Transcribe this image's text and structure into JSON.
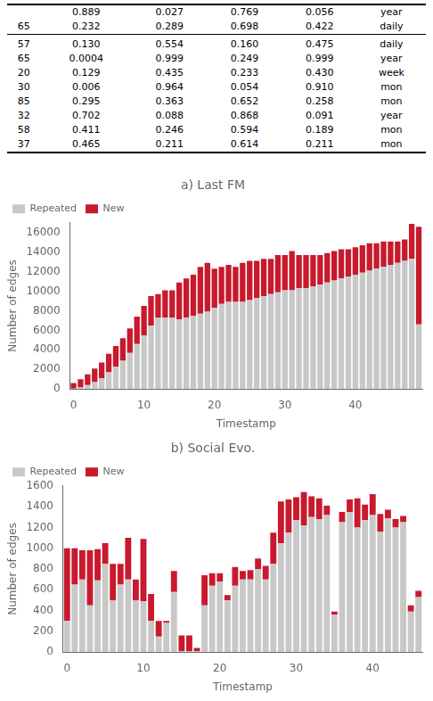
{
  "chart_data": [
    {
      "type": "table",
      "values": [
        [
          null,
          "0.889",
          "0.027",
          null,
          "0.769",
          "0.056",
          "year"
        ],
        [
          "65",
          "0.232",
          "0.289",
          null,
          "0.698",
          "0.422",
          "daily"
        ],
        [
          null,
          null,
          null,
          null,
          null,
          null,
          null
        ],
        [
          "57",
          "0.130",
          "0.554",
          null,
          "0.160",
          "0.475",
          "daily"
        ],
        [
          "65",
          "0.0004",
          "0.999",
          null,
          "0.249",
          "0.999",
          "year"
        ],
        [
          "20",
          "0.129",
          "0.435",
          null,
          "0.233",
          "0.430",
          "week"
        ],
        [
          "30",
          "0.006",
          "0.964",
          null,
          "0.054",
          "0.910",
          "mon"
        ],
        [
          "85",
          "0.295",
          "0.363",
          null,
          "0.652",
          "0.258",
          "mon"
        ],
        [
          "32",
          "0.702",
          "0.088",
          null,
          "0.868",
          "0.091",
          "year"
        ],
        [
          "58",
          "0.411",
          "0.246",
          null,
          "0.594",
          "0.189",
          "mon"
        ],
        [
          "37",
          "0.465",
          "0.211",
          null,
          "0.614",
          "0.211",
          "mon"
        ]
      ]
    },
    {
      "type": "bar",
      "title": "a) Last FM",
      "x_label": "Timestamp",
      "y_label": "Number of edges",
      "stacked": true,
      "grid": false,
      "legend": "upper left",
      "categories": [
        "0",
        null,
        null,
        null,
        null,
        null,
        null,
        null,
        null,
        null,
        "10",
        null,
        null,
        null,
        null,
        null,
        null,
        null,
        null,
        null,
        "20",
        null,
        null,
        null,
        null,
        null,
        null,
        null,
        null,
        null,
        "30",
        null,
        null,
        null,
        null,
        null,
        null,
        null,
        null,
        null,
        "40",
        null,
        null,
        null,
        null,
        null,
        null,
        null,
        null,
        null
      ],
      "series": [
        {
          "name": "Repeated",
          "color": "#c8c8c8",
          "values": [
            50,
            150,
            400,
            700,
            1100,
            1700,
            2300,
            2900,
            3700,
            4600,
            5500,
            6500,
            7300,
            7300,
            7300,
            7100,
            7300,
            7500,
            7700,
            7900,
            8300,
            8700,
            8900,
            8900,
            8900,
            9100,
            9300,
            9500,
            9700,
            9900,
            10100,
            10100,
            10300,
            10300,
            10500,
            10700,
            10900,
            11100,
            11300,
            11500,
            11700,
            11900,
            12100,
            12300,
            12500,
            12700,
            12900,
            13100,
            13300,
            6600
          ]
        },
        {
          "name": "New",
          "color": "#c8192d",
          "values": [
            550,
            850,
            1100,
            1400,
            1600,
            1900,
            2100,
            2300,
            2500,
            2800,
            3000,
            3000,
            2400,
            2800,
            2800,
            3800,
            4000,
            4200,
            4800,
            5000,
            4000,
            3800,
            3800,
            3600,
            4000,
            4000,
            3800,
            3800,
            3600,
            3800,
            3600,
            4000,
            3400,
            3400,
            3200,
            3000,
            3000,
            3000,
            3000,
            2800,
            2800,
            2800,
            2800,
            2600,
            2600,
            2400,
            2200,
            2200,
            3600,
            10000
          ]
        }
      ],
      "ylim": [
        0,
        17000
      ],
      "yticks": [
        0,
        2000,
        4000,
        6000,
        8000,
        10000,
        12000,
        14000,
        16000
      ]
    },
    {
      "type": "bar",
      "title": "b) Social Evo.",
      "x_label": "Timestamp",
      "y_label": "Number of edges",
      "stacked": true,
      "grid": false,
      "legend": "upper left",
      "categories": [
        "0",
        null,
        null,
        null,
        null,
        null,
        null,
        null,
        null,
        null,
        "10",
        null,
        null,
        null,
        null,
        null,
        null,
        null,
        null,
        null,
        "20",
        null,
        null,
        null,
        null,
        null,
        null,
        null,
        null,
        null,
        "30",
        null,
        null,
        null,
        null,
        null,
        null,
        null,
        null,
        null,
        "40",
        null,
        null,
        null,
        null,
        null,
        null
      ],
      "series": [
        {
          "name": "Repeated",
          "color": "#c8c8c8",
          "values": [
            300,
            650,
            700,
            450,
            690,
            850,
            500,
            650,
            700,
            500,
            490,
            300,
            150,
            280,
            580,
            10,
            10,
            10,
            450,
            640,
            680,
            500,
            640,
            700,
            700,
            800,
            700,
            850,
            1050,
            1150,
            1270,
            1220,
            1300,
            1280,
            1320,
            360,
            1250,
            1350,
            1200,
            1270,
            1320,
            1160,
            1290,
            1200,
            1250,
            390,
            530
          ]
        },
        {
          "name": "New",
          "color": "#c8192d",
          "values": [
            700,
            350,
            280,
            530,
            300,
            200,
            350,
            200,
            400,
            200,
            600,
            260,
            150,
            20,
            200,
            150,
            150,
            30,
            290,
            120,
            80,
            50,
            180,
            80,
            90,
            100,
            130,
            300,
            400,
            320,
            220,
            320,
            200,
            200,
            90,
            30,
            100,
            120,
            280,
            150,
            200,
            170,
            80,
            80,
            60,
            60,
            60
          ]
        }
      ],
      "ylim": [
        0,
        1600
      ],
      "yticks": [
        0,
        200,
        400,
        600,
        800,
        1000,
        1200,
        1400,
        1600
      ]
    }
  ]
}
